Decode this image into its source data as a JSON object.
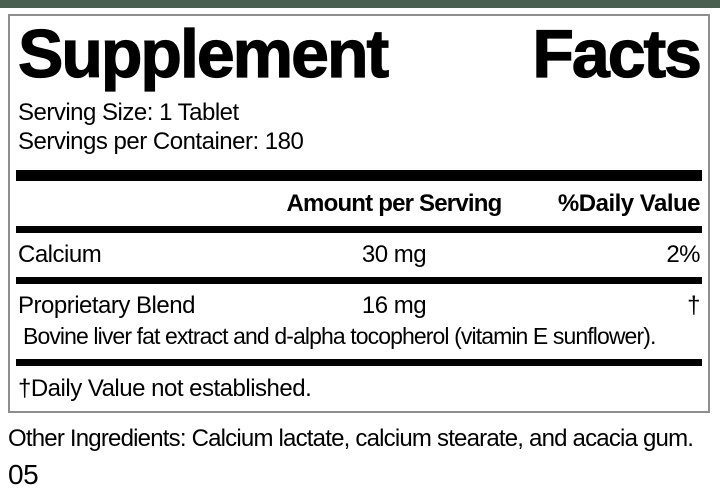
{
  "theme": {
    "green_bar_color": "#4b5f50",
    "box_border_color": "#8e8e8e",
    "divider_color": "#000000",
    "text_color": "#000000"
  },
  "label": {
    "title": {
      "left": "Supplement",
      "right": "Facts"
    },
    "serving_size": "Serving Size: 1 Tablet",
    "servings_per_container": "Servings per Container: 180",
    "columns": {
      "amount": "Amount per Serving",
      "daily_value": "%Daily Value"
    },
    "rows": [
      {
        "name": "Calcium",
        "amount": "30 mg",
        "dv": "2%"
      },
      {
        "name": "Proprietary Blend",
        "amount": "16 mg",
        "dv": "†",
        "description": "Bovine liver fat extract and d-alpha tocopherol (vitamin E sunflower)."
      }
    ],
    "footnote": "†Daily Value not established.",
    "other_ingredients": "Other Ingredients: Calcium lactate, calcium stearate, and acacia gum.",
    "code": "05"
  }
}
